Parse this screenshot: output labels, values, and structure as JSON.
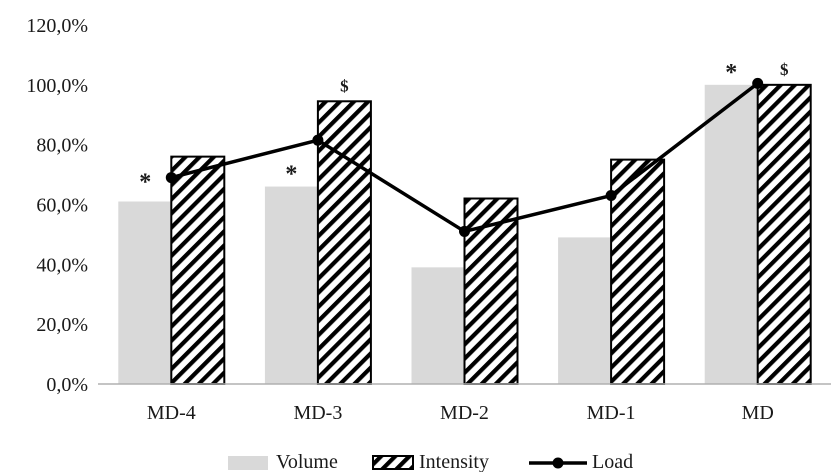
{
  "chart_data": {
    "type": "bar",
    "categories": [
      "MD-4",
      "MD-3",
      "MD-2",
      "MD-1",
      "MD"
    ],
    "ylim": [
      0,
      120
    ],
    "yticks": [
      0,
      20,
      40,
      60,
      80,
      100,
      120
    ],
    "ytick_labels": [
      "0,0%",
      "20,0%",
      "40,0%",
      "60,0%",
      "80,0%",
      "100,0%",
      "120,0%"
    ],
    "grid": false,
    "legend_position": "bottom",
    "series": [
      {
        "name": "Volume",
        "kind": "bar",
        "fill": "solid",
        "color": "#d9d9d9",
        "values": [
          61,
          66,
          39,
          49,
          100
        ]
      },
      {
        "name": "Intensity",
        "kind": "bar",
        "fill": "diagonal-stripes",
        "color": "#000000",
        "values": [
          76,
          94.5,
          62,
          75,
          100
        ]
      },
      {
        "name": "Load",
        "kind": "line",
        "marker": "circle",
        "color": "#000000",
        "values": [
          69,
          81.5,
          51,
          63,
          100.5
        ]
      }
    ],
    "annotations": [
      {
        "category": "MD-4",
        "text": "*",
        "series": "Load"
      },
      {
        "category": "MD-3",
        "text": "*",
        "series": "Volume"
      },
      {
        "category": "MD-3",
        "text": "$",
        "series": "Intensity"
      },
      {
        "category": "MD",
        "text": "*",
        "series": "Volume"
      },
      {
        "category": "MD",
        "text": "$",
        "series": "Intensity"
      }
    ]
  }
}
